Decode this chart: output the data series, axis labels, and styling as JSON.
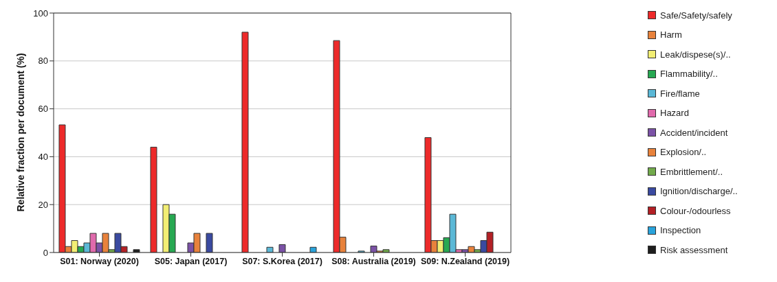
{
  "chart_data": {
    "type": "bar",
    "ylabel": "Relative fraction per document (%)",
    "categories": [
      "S01: Norway (2020)",
      "S05: Japan (2017)",
      "S07: S.Korea (2017)",
      "S08: Australia (2019)",
      "S09:  N.Zealand (2019)"
    ],
    "series": [
      {
        "name": "Safe/Safety/safely",
        "color": "#ed2a2a",
        "values": [
          53.3,
          44,
          92,
          88.5,
          48
        ]
      },
      {
        "name": "Harm",
        "color": "#e8823c",
        "values": [
          2.5,
          0,
          0,
          6.4,
          5
        ]
      },
      {
        "name": "Leak/dispese(s)/..",
        "color": "#f2ee74",
        "values": [
          5,
          20,
          0,
          0,
          5
        ]
      },
      {
        "name": "Flammability/..",
        "color": "#27a852",
        "values": [
          2.5,
          16,
          0,
          0,
          6.2
        ]
      },
      {
        "name": "Fire/flame",
        "color": "#5bb8d6",
        "values": [
          4,
          0,
          2.2,
          0.6,
          16
        ]
      },
      {
        "name": "Hazard",
        "color": "#e06aac",
        "values": [
          8,
          0,
          0,
          0,
          1.2
        ]
      },
      {
        "name": "Accident/incident",
        "color": "#7b52a6",
        "values": [
          4,
          4,
          3.3,
          2.7,
          1.2
        ]
      },
      {
        "name": "Explosion/..",
        "color": "#e8823c",
        "values": [
          8,
          8,
          0,
          0.6,
          2.5
        ]
      },
      {
        "name": "Embrittlement/..",
        "color": "#72aa4c",
        "values": [
          1.2,
          0,
          0,
          1.2,
          1.2
        ]
      },
      {
        "name": "Ignition/discharge/..",
        "color": "#3a4aa0",
        "values": [
          8,
          8,
          0,
          0,
          5
        ]
      },
      {
        "name": "Colour-/odourless",
        "color": "#b32025",
        "values": [
          2.5,
          0,
          0,
          0,
          8.5
        ]
      },
      {
        "name": "Inspection",
        "color": "#29a3db",
        "values": [
          0,
          0,
          2.2,
          0,
          0
        ]
      },
      {
        "name": "Risk assessment",
        "color": "#1e1e1e",
        "values": [
          1.2,
          0,
          0,
          0,
          0
        ]
      }
    ],
    "ylim": [
      0,
      100
    ],
    "yticks": [
      0,
      20,
      40,
      60,
      80,
      100
    ],
    "grid": "y",
    "legend": "right"
  }
}
